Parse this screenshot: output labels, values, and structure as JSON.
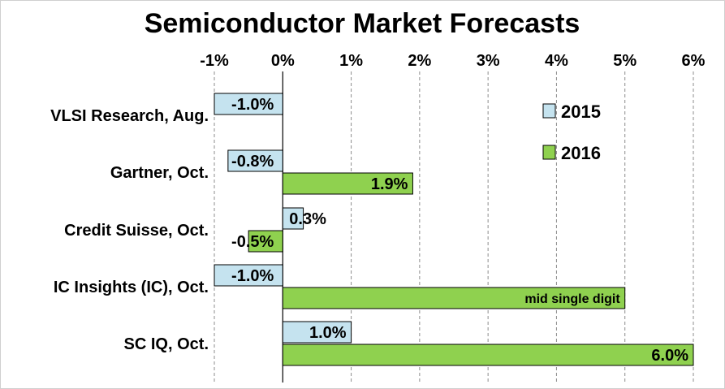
{
  "chart_data": {
    "type": "bar",
    "orientation": "horizontal",
    "title": "Semiconductor Market Forecasts",
    "categories": [
      "VLSI Research, Aug.",
      "Gartner, Oct.",
      "Credit Suisse, Oct.",
      "IC Insights (IC), Oct.",
      "SC IQ, Oct."
    ],
    "series": [
      {
        "name": "2015",
        "color": "#c5e3ef",
        "values": [
          -1.0,
          -0.8,
          0.3,
          -1.0,
          1.0
        ],
        "labels": [
          "-1.0%",
          "-0.8%",
          "0.3%",
          "-1.0%",
          "1.0%"
        ]
      },
      {
        "name": "2016",
        "color": "#8fd14f",
        "values": [
          null,
          1.9,
          -0.5,
          5.0,
          6.0
        ],
        "labels": [
          "",
          "1.9%",
          "-0.5%",
          "mid single digit",
          "6.0%"
        ]
      }
    ],
    "xlim": [
      -1,
      6
    ],
    "xticks": [
      -1,
      0,
      1,
      2,
      3,
      4,
      5,
      6
    ],
    "xtick_labels": [
      "-1%",
      "0%",
      "1%",
      "2%",
      "3%",
      "4%",
      "5%",
      "6%"
    ],
    "xaxis_position": "top",
    "grid": "vertical dashed",
    "legend_position": "top-right"
  }
}
